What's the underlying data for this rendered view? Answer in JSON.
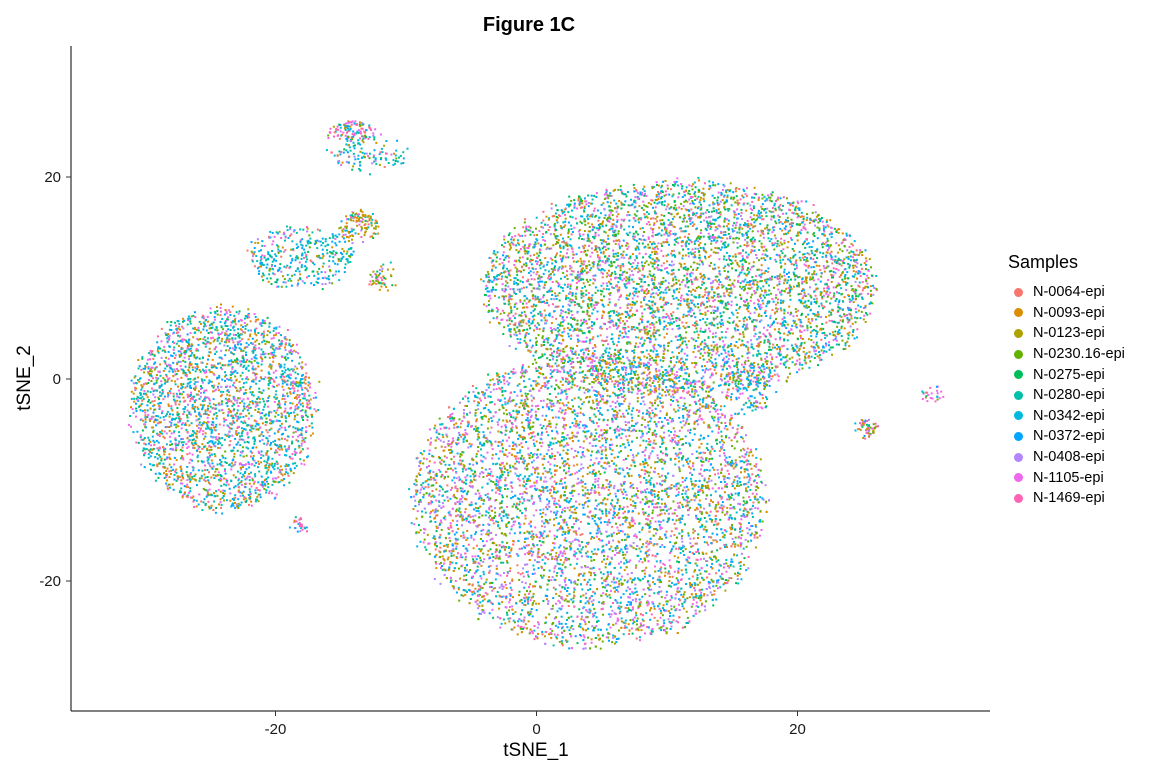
{
  "chart_data": {
    "type": "scatter",
    "title": "Figure 1C",
    "xlabel": "tSNE_1",
    "ylabel": "tSNE_2",
    "xlim": [
      -35,
      35
    ],
    "ylim": [
      -32,
      33
    ],
    "x_ticks": [
      -20,
      0,
      20
    ],
    "y_ticks": [
      -20,
      0,
      20
    ],
    "grid": false,
    "legend_title": "Samples",
    "legend_position": "right",
    "series": [
      {
        "name": "N-0064-epi",
        "color": "#F8766D"
      },
      {
        "name": "N-0093-epi",
        "color": "#DB8E00"
      },
      {
        "name": "N-0123-epi",
        "color": "#AEA200"
      },
      {
        "name": "N-0230.16-epi",
        "color": "#64B200"
      },
      {
        "name": "N-0275-epi",
        "color": "#00BD5C"
      },
      {
        "name": "N-0280-epi",
        "color": "#00C1A7"
      },
      {
        "name": "N-0342-epi",
        "color": "#00BADE"
      },
      {
        "name": "N-0372-epi",
        "color": "#00A6FF"
      },
      {
        "name": "N-0408-epi",
        "color": "#B385FF"
      },
      {
        "name": "N-1105-epi",
        "color": "#EF67EB"
      },
      {
        "name": "N-1469-epi",
        "color": "#FF63B6"
      }
    ]
  }
}
